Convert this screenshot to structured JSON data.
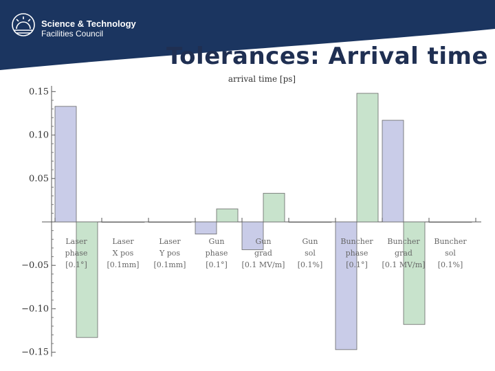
{
  "header": {
    "org_line1": "Science & Technology",
    "org_line2": "Facilities Council",
    "title": "Tolerances: Arrival time",
    "colors": {
      "band": "#1b3560",
      "title_text": "#1f2f52"
    },
    "logo_icon": "sunrise-icon"
  },
  "chart_data": {
    "type": "bar",
    "title": "arrival time [ps]",
    "ylim": [
      -0.155,
      0.155
    ],
    "yticks": [
      -0.15,
      -0.1,
      -0.05,
      0.05,
      0.1,
      0.15
    ],
    "ytick_labels": [
      "−0.15",
      "−0.10",
      "−0.05",
      "0.05",
      "0.10",
      "0.15"
    ],
    "categories": [
      [
        "Laser",
        "phase",
        "[0.1°]"
      ],
      [
        "Laser",
        "X pos",
        "[0.1mm]"
      ],
      [
        "Laser",
        "Y pos",
        "[0.1mm]"
      ],
      [
        "Gun",
        "phase",
        "[0.1°]"
      ],
      [
        "Gun",
        "grad",
        "[0.1 MV/m]"
      ],
      [
        "Gun",
        "sol",
        "[0.1%]"
      ],
      [
        "Buncher",
        "phase",
        "[0.1°]"
      ],
      [
        "Buncher",
        "grad",
        "[0.1 MV/m]"
      ],
      [
        "Buncher",
        "sol",
        "[0.1%]"
      ]
    ],
    "series": [
      {
        "color": "#c9cce8",
        "values": [
          0.133,
          0.0,
          0.0,
          -0.014,
          -0.032,
          0.0,
          -0.147,
          0.117,
          0.0
        ]
      },
      {
        "color": "#c8e3cc",
        "values": [
          -0.133,
          0.0,
          0.0,
          0.015,
          0.033,
          0.0,
          0.148,
          -0.118,
          0.0
        ]
      }
    ],
    "grid": false,
    "legend": "none"
  }
}
